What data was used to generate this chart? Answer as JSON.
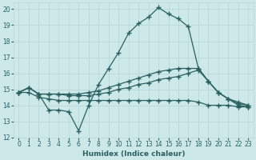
{
  "xlabel": "Humidex (Indice chaleur)",
  "xlim": [
    -0.5,
    23.5
  ],
  "ylim": [
    12,
    20.4
  ],
  "xticks": [
    0,
    1,
    2,
    3,
    4,
    5,
    6,
    7,
    8,
    9,
    10,
    11,
    12,
    13,
    14,
    15,
    16,
    17,
    18,
    19,
    20,
    21,
    22,
    23
  ],
  "yticks": [
    12,
    13,
    14,
    15,
    16,
    17,
    18,
    19,
    20
  ],
  "background_color": "#cce8e8",
  "grid_color": "#b8d8d8",
  "line_color": "#2a6060",
  "line1_x": [
    0,
    1,
    2,
    3,
    4,
    5,
    6,
    7,
    8,
    9,
    10,
    11,
    12,
    13,
    14,
    15,
    16,
    17,
    18,
    19,
    20,
    21,
    22,
    23
  ],
  "line1_y": [
    14.8,
    15.1,
    14.7,
    13.7,
    13.7,
    13.6,
    12.4,
    14.0,
    15.3,
    16.3,
    17.3,
    18.5,
    19.1,
    19.5,
    20.1,
    19.7,
    19.4,
    18.9,
    16.3,
    15.5,
    14.8,
    14.4,
    14.0,
    13.9
  ],
  "line2_x": [
    0,
    1,
    2,
    3,
    4,
    5,
    6,
    7,
    8,
    9,
    10,
    11,
    12,
    13,
    14,
    15,
    16,
    17,
    18,
    19,
    20,
    21,
    22,
    23
  ],
  "line2_y": [
    14.8,
    15.1,
    14.7,
    14.7,
    14.7,
    14.7,
    14.7,
    14.8,
    14.9,
    15.1,
    15.3,
    15.5,
    15.7,
    15.9,
    16.1,
    16.2,
    16.3,
    16.3,
    16.3,
    15.5,
    14.8,
    14.4,
    14.2,
    14.0
  ],
  "line3_x": [
    0,
    1,
    2,
    3,
    4,
    5,
    6,
    7,
    8,
    9,
    10,
    11,
    12,
    13,
    14,
    15,
    16,
    17,
    18,
    19,
    20,
    21,
    22,
    23
  ],
  "line3_y": [
    14.8,
    14.8,
    14.5,
    14.4,
    14.3,
    14.3,
    14.3,
    14.3,
    14.3,
    14.3,
    14.3,
    14.3,
    14.3,
    14.3,
    14.3,
    14.3,
    14.3,
    14.3,
    14.2,
    14.0,
    14.0,
    14.0,
    13.9,
    13.9
  ],
  "line4_x": [
    0,
    1,
    2,
    3,
    4,
    5,
    6,
    7,
    8,
    9,
    10,
    11,
    12,
    13,
    14,
    15,
    16,
    17,
    18,
    19,
    20,
    21,
    22,
    23
  ],
  "line4_y": [
    14.8,
    15.1,
    14.7,
    14.7,
    14.7,
    14.6,
    14.6,
    14.6,
    14.7,
    14.8,
    15.0,
    15.1,
    15.3,
    15.4,
    15.6,
    15.7,
    15.8,
    16.0,
    16.2,
    15.5,
    14.8,
    14.4,
    14.1,
    14.0
  ]
}
